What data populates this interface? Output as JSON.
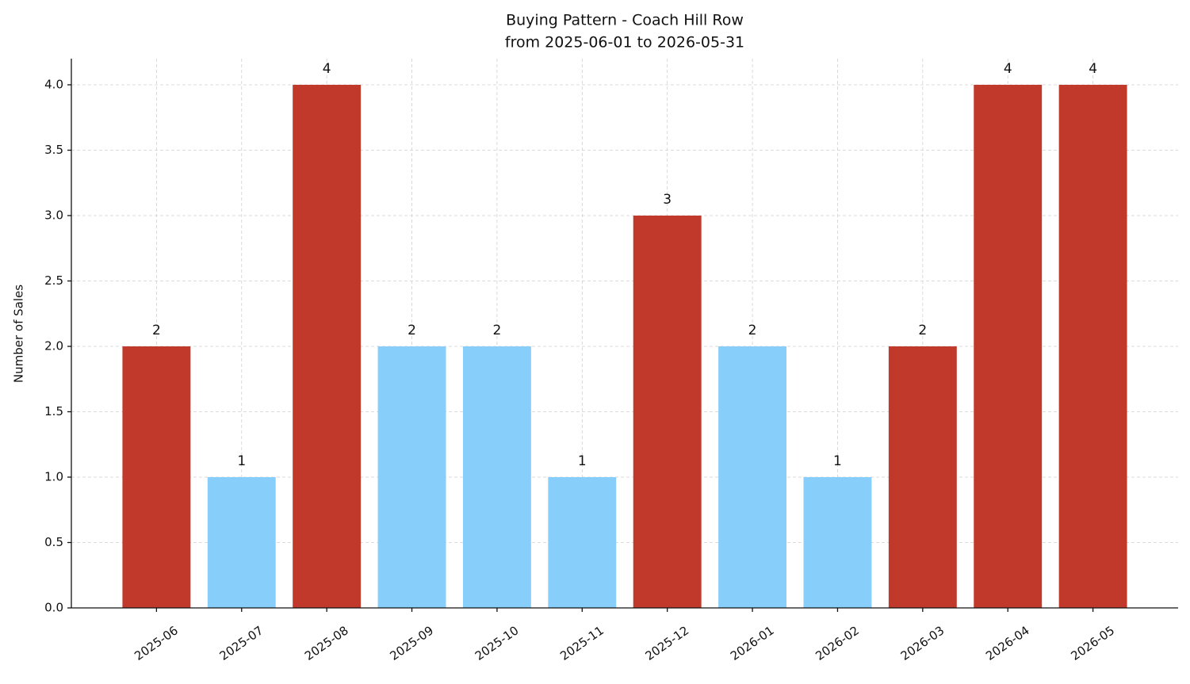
{
  "chart_data": {
    "type": "bar",
    "title": "Buying Pattern - Coach Hill Row",
    "subtitle": "from 2025-06-01 to 2026-05-31",
    "y_label": "Number of Sales",
    "categories": [
      "2025-06",
      "2025-07",
      "2025-08",
      "2025-09",
      "2025-10",
      "2025-11",
      "2025-12",
      "2026-01",
      "2026-02",
      "2026-03",
      "2026-04",
      "2026-05"
    ],
    "values": [
      2,
      1,
      4,
      2,
      2,
      1,
      3,
      2,
      1,
      2,
      4,
      4
    ],
    "colors": [
      "#c0392b",
      "#87cefa",
      "#c0392b",
      "#87cefa",
      "#87cefa",
      "#87cefa",
      "#c0392b",
      "#87cefa",
      "#87cefa",
      "#c0392b",
      "#c0392b",
      "#c0392b"
    ],
    "ylim": [
      0,
      4.2
    ],
    "yticks": [
      {
        "value": 0,
        "label": "0.0"
      },
      0.5,
      {
        "value": 1,
        "label": "1.0"
      },
      1.5,
      {
        "value": 2,
        "label": "2.0"
      },
      2.5,
      {
        "value": 3,
        "label": "3.0"
      },
      3.5,
      {
        "value": 4,
        "label": "4.0"
      }
    ],
    "grid": true
  }
}
